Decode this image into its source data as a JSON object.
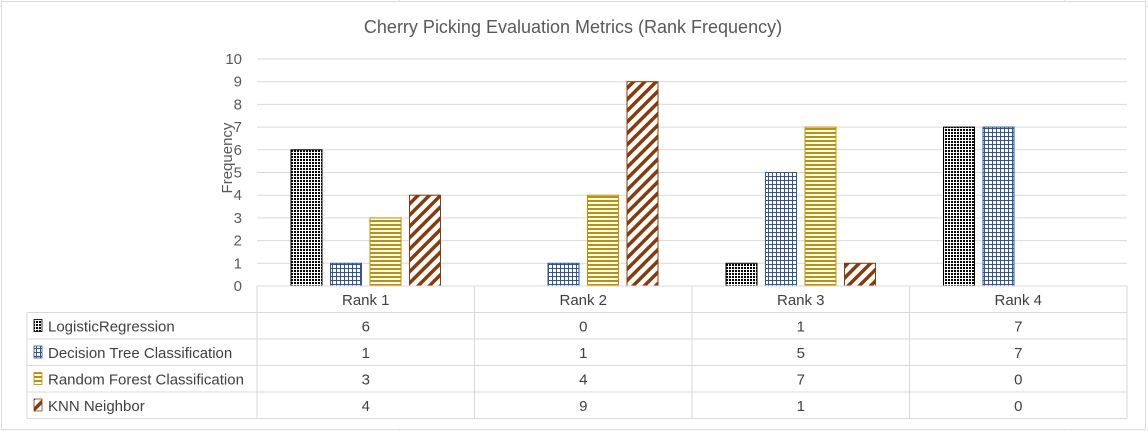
{
  "chart_data": {
    "type": "bar",
    "title": "Cherry Picking Evaluation Metrics (Rank Frequency)",
    "xlabel": "",
    "ylabel": "Frequency",
    "ylim": [
      0,
      10
    ],
    "yticks": [
      0,
      1,
      2,
      3,
      4,
      5,
      6,
      7,
      8,
      9,
      10
    ],
    "grid": true,
    "legend": "data-table-left",
    "categories": [
      "Rank 1",
      "Rank 2",
      "Rank 3",
      "Rank 4"
    ],
    "series": [
      {
        "name": "LogisticRegression",
        "values": [
          6,
          0,
          1,
          7
        ],
        "color": "#000000",
        "pattern": "dots"
      },
      {
        "name": "Decision Tree Classification",
        "values": [
          1,
          1,
          5,
          7
        ],
        "color": "#2f5597",
        "pattern": "grid"
      },
      {
        "name": "Random Forest Classification",
        "values": [
          3,
          4,
          7,
          0
        ],
        "color": "#bf9000",
        "pattern": "horizontal"
      },
      {
        "name": "KNN Neighbor",
        "values": [
          4,
          9,
          1,
          0
        ],
        "color": "#843c0c",
        "pattern": "diagonal"
      }
    ]
  }
}
